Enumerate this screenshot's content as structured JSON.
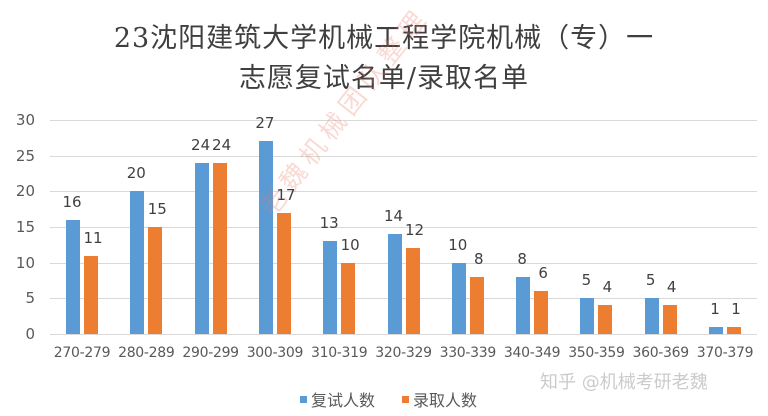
{
  "chart_data": {
    "type": "bar",
    "title": "23沈阳建筑大学机械工程学院机械（专）一志愿复试名单/录取名单",
    "title_lines": [
      "23沈阳建筑大学机械工程学院机械（专）一",
      "志愿复试名单/录取名单"
    ],
    "xlabel": "",
    "ylabel": "",
    "ylim": [
      0,
      30
    ],
    "yticks": [
      0,
      5,
      10,
      15,
      20,
      25,
      30
    ],
    "grid": true,
    "legend_position": "bottom",
    "categories": [
      "270-279",
      "280-289",
      "290-299",
      "300-309",
      "310-319",
      "320-329",
      "330-339",
      "340-349",
      "350-359",
      "360-369",
      "370-379"
    ],
    "series": [
      {
        "name": "复试人数",
        "color": "#5B9BD5",
        "values": [
          16,
          20,
          24,
          27,
          13,
          14,
          10,
          8,
          5,
          5,
          1
        ]
      },
      {
        "name": "录取人数",
        "color": "#ED7D31",
        "values": [
          11,
          15,
          24,
          17,
          10,
          12,
          8,
          6,
          4,
          4,
          1
        ]
      }
    ]
  },
  "watermarks": {
    "diagonal": "老魏机械团队整理",
    "corner": "知乎 @机械考研老魏"
  }
}
